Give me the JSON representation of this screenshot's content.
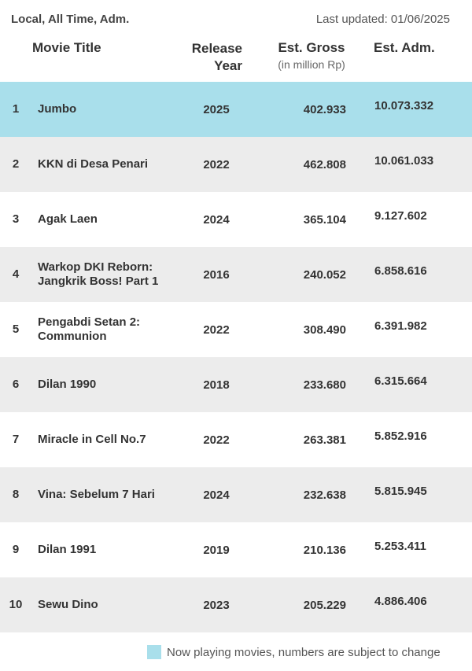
{
  "header": {
    "filter": "Local, All Time, Adm.",
    "last_updated": "Last updated: 01/06/2025"
  },
  "columns": {
    "title": "Movie Title",
    "year_line1": "Release",
    "year_line2": "Year",
    "gross": "Est. Gross",
    "gross_unit": "(in million Rp)",
    "adm": "Est. Adm."
  },
  "colors": {
    "now_playing": "#a9dfeb",
    "row_alt": "#ececec"
  },
  "chart_data": {
    "type": "table",
    "rows": [
      {
        "rank": "1",
        "title": "Jumbo",
        "year": "2025",
        "gross": "402.933",
        "adm": "10.073.332",
        "now_playing": true
      },
      {
        "rank": "2",
        "title": "KKN di Desa Penari",
        "year": "2022",
        "gross": "462.808",
        "adm": "10.061.033",
        "now_playing": false
      },
      {
        "rank": "3",
        "title": "Agak Laen",
        "year": "2024",
        "gross": "365.104",
        "adm": "9.127.602",
        "now_playing": false
      },
      {
        "rank": "4",
        "title": "Warkop DKI Reborn: Jangkrik Boss! Part 1",
        "year": "2016",
        "gross": "240.052",
        "adm": "6.858.616",
        "now_playing": false
      },
      {
        "rank": "5",
        "title": "Pengabdi Setan 2: Communion",
        "year": "2022",
        "gross": "308.490",
        "adm": "6.391.982",
        "now_playing": false
      },
      {
        "rank": "6",
        "title": "Dilan 1990",
        "year": "2018",
        "gross": "233.680",
        "adm": "6.315.664",
        "now_playing": false
      },
      {
        "rank": "7",
        "title": "Miracle in Cell No.7",
        "year": "2022",
        "gross": "263.381",
        "adm": "5.852.916",
        "now_playing": false
      },
      {
        "rank": "8",
        "title": "Vina: Sebelum 7 Hari",
        "year": "2024",
        "gross": "232.638",
        "adm": "5.815.945",
        "now_playing": false
      },
      {
        "rank": "9",
        "title": "Dilan 1991",
        "year": "2019",
        "gross": "210.136",
        "adm": "5.253.411",
        "now_playing": false
      },
      {
        "rank": "10",
        "title": "Sewu Dino",
        "year": "2023",
        "gross": "205.229",
        "adm": "4.886.406",
        "now_playing": false
      }
    ]
  },
  "legend": {
    "text": "Now playing movies, numbers are subject to change"
  }
}
